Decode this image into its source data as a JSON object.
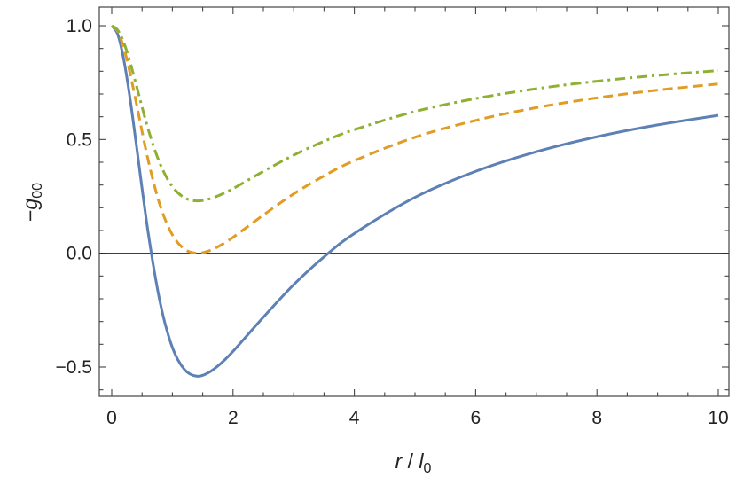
{
  "chart_data": {
    "type": "line",
    "xlabel": "r / l0",
    "xlabel_parts": {
      "main": "r",
      "sep": " / ",
      "sym": "l",
      "sub": "0"
    },
    "ylabel": "-g00",
    "ylabel_parts": {
      "minus": "−",
      "sym": "g",
      "sub": "00"
    },
    "xlim": [
      -0.2,
      10.2
    ],
    "ylim": [
      -0.62,
      1.08
    ],
    "xticks": [
      0,
      2,
      4,
      6,
      8,
      10
    ],
    "xtick_labels": [
      "0",
      "2",
      "4",
      "6",
      "8",
      "10"
    ],
    "yticks": [
      1.0,
      0.5,
      0.0,
      -0.5
    ],
    "ytick_labels": [
      "1.0",
      "0.5",
      "0.0",
      "−0.5"
    ],
    "grid": false,
    "reference_line_y": 0,
    "x": [
      0,
      0.1,
      0.2,
      0.3,
      0.4,
      0.6,
      0.8,
      1.0,
      1.2,
      1.4,
      1.6,
      1.8,
      2.0,
      2.5,
      3.0,
      3.5,
      4.0,
      5.0,
      6.0,
      7.0,
      8.0,
      9.0,
      10.0
    ],
    "series": [
      {
        "style": "solid",
        "color": "#5E81B5",
        "values": [
          1,
          0.961,
          0.849,
          0.684,
          0.488,
          0.092,
          -0.219,
          -0.414,
          -0.511,
          -0.54,
          -0.524,
          -0.484,
          -0.431,
          -0.281,
          -0.138,
          -0.016,
          0.087,
          0.246,
          0.36,
          0.446,
          0.512,
          0.564,
          0.606
        ]
      },
      {
        "style": "dashed",
        "color": "#E19C24",
        "values": [
          1,
          0.974,
          0.902,
          0.794,
          0.667,
          0.41,
          0.208,
          0.081,
          0.018,
          0.0,
          0.01,
          0.036,
          0.07,
          0.168,
          0.261,
          0.34,
          0.407,
          0.51,
          0.584,
          0.64,
          0.683,
          0.717,
          0.744
        ]
      },
      {
        "style": "dot-dashed",
        "color": "#8FB032",
        "values": [
          1,
          0.98,
          0.925,
          0.842,
          0.744,
          0.546,
          0.391,
          0.293,
          0.244,
          0.23,
          0.238,
          0.258,
          0.284,
          0.36,
          0.431,
          0.492,
          0.543,
          0.623,
          0.68,
          0.723,
          0.756,
          0.782,
          0.803
        ]
      }
    ]
  }
}
